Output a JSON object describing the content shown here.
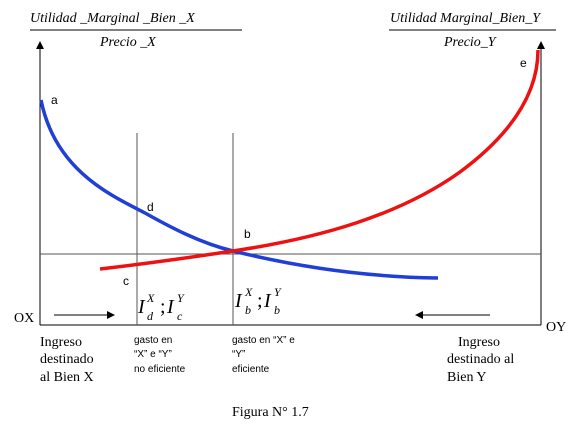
{
  "colors": {
    "blue_curve": "#1f3fd6",
    "red_curve": "#ee1111",
    "axis": "#000000",
    "guide": "#555555"
  },
  "left_label": {
    "numerator": "Utilidad _Marginal _Bien _X",
    "denominator": "Precio _X"
  },
  "right_label": {
    "numerator": "Utilidad Marginal_Bien_Y",
    "denominator": "Precio_Y"
  },
  "points": {
    "a": "a",
    "b": "b",
    "c": "c",
    "d": "d",
    "e": "e"
  },
  "axis_labels": {
    "ox": "OX",
    "oy": "OY"
  },
  "eq_inefficient": {
    "base1": "I",
    "sup1": "X",
    "sub1": "d",
    "sep": ";",
    "base2": "I",
    "sup2": "Y",
    "sub2": "c"
  },
  "eq_efficient": {
    "base1": "I",
    "sup1": "X",
    "sub1": "b",
    "sep": ";",
    "base2": "I",
    "sup2": "Y",
    "sub2": "b"
  },
  "ingreso_x": [
    "Ingreso",
    "destinado",
    "al Bien X"
  ],
  "ingreso_y": [
    "Ingreso",
    "destinado  al",
    "Bien Y"
  ],
  "gasto_no_eficiente": [
    "gasto en",
    "“X” e “Y”",
    "no eficiente"
  ],
  "gasto_eficiente": [
    "gasto en “X” e",
    "“Y”",
    "eficiente"
  ],
  "caption": "Figura N° 1.7"
}
